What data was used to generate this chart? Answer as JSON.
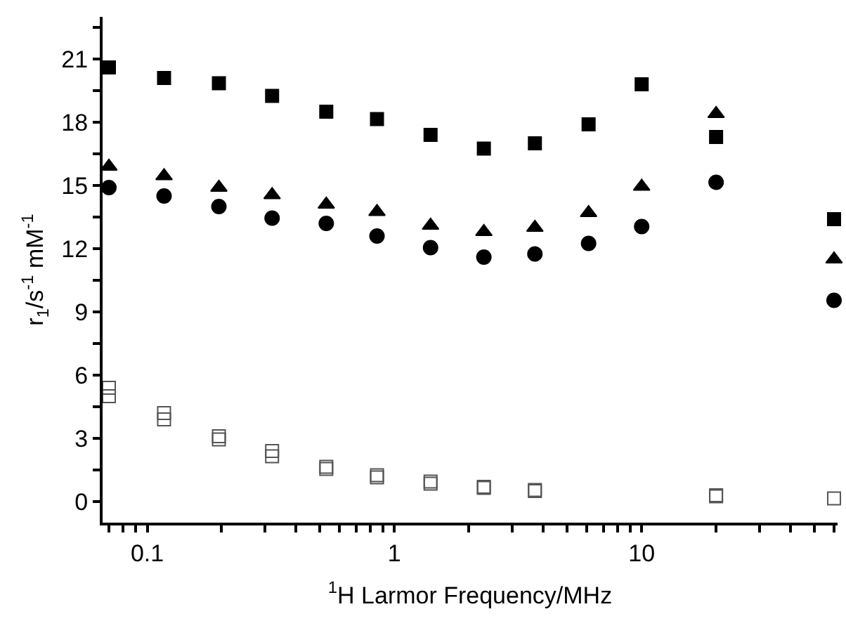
{
  "chart_data": {
    "type": "scatter",
    "xlabel": "$^{1}$H Larmor Frequency/MHz",
    "ylabel": "r$_{1}$/s$^{-1}$ mM$^{-1}$",
    "log": "x",
    "x": [
      0.07,
      0.117,
      0.195,
      0.32,
      0.53,
      0.85,
      1.4,
      2.3,
      3.7,
      6.1,
      10,
      20,
      60
    ],
    "xlim": [
      0.066,
      62
    ],
    "xticks": [
      {
        "value": 0.07,
        "label": null
      },
      {
        "value": 0.08,
        "label": null
      },
      {
        "value": 0.09,
        "label": null
      },
      0.1,
      {
        "value": 0.2,
        "label": null
      },
      {
        "value": 0.3,
        "label": null
      },
      {
        "value": 0.4,
        "label": null
      },
      {
        "value": 0.5,
        "label": null
      },
      {
        "value": 0.6,
        "label": null
      },
      {
        "value": 0.7,
        "label": null
      },
      {
        "value": 0.8,
        "label": null
      },
      {
        "value": 0.9,
        "label": null
      },
      1,
      {
        "value": 2,
        "label": null
      },
      {
        "value": 3,
        "label": null
      },
      {
        "value": 4,
        "label": null
      },
      {
        "value": 5,
        "label": null
      },
      {
        "value": 6,
        "label": null
      },
      {
        "value": 7,
        "label": null
      },
      {
        "value": 8,
        "label": null
      },
      {
        "value": 9,
        "label": null
      },
      10,
      {
        "value": 20,
        "label": null
      },
      {
        "value": 30,
        "label": null
      },
      {
        "value": 40,
        "label": null
      },
      {
        "value": 50,
        "label": null
      },
      {
        "value": 60,
        "label": null
      }
    ],
    "ylim": [
      -1,
      23
    ],
    "yticks": [
      0,
      {
        "value": 1.5,
        "label": null
      },
      3,
      {
        "value": 4.5,
        "label": null
      },
      6,
      {
        "value": 7.5,
        "label": null
      },
      9,
      {
        "value": 10.5,
        "label": null
      },
      12,
      {
        "value": 13.5,
        "label": null
      },
      15,
      {
        "value": 16.5,
        "label": null
      },
      18,
      {
        "value": 19.5,
        "label": null
      },
      21,
      {
        "value": 22.5,
        "label": null
      }
    ],
    "series": [
      {
        "marker": "square",
        "color": "#000000",
        "values": [
          20.6,
          20.1,
          19.85,
          19.25,
          18.5,
          18.15,
          17.4,
          16.75,
          17.0,
          17.9,
          19.8,
          17.3,
          13.4
        ]
      },
      {
        "marker": "triangle",
        "color": "#000000",
        "values": [
          15.9,
          15.45,
          14.9,
          14.55,
          14.1,
          13.75,
          13.1,
          12.8,
          13.0,
          13.7,
          14.95,
          18.4,
          11.5
        ]
      },
      {
        "marker": "circle",
        "color": "#000000",
        "values": [
          14.9,
          14.5,
          14.0,
          13.45,
          13.2,
          12.6,
          12.05,
          11.6,
          11.75,
          12.25,
          13.05,
          15.15,
          9.55
        ]
      },
      {
        "marker": "square-open",
        "color": "#555555",
        "values": [
          5.4,
          4.2,
          3.1,
          2.4,
          1.65,
          1.25,
          0.95,
          0.7,
          0.55,
          null,
          null,
          0.3,
          0.15
        ]
      },
      {
        "marker": "square-open",
        "color": "#555555",
        "values": [
          5.0,
          3.9,
          2.95,
          2.15,
          1.55,
          1.15,
          0.85,
          0.65,
          0.5,
          null,
          null,
          0.25,
          null
        ]
      }
    ]
  }
}
